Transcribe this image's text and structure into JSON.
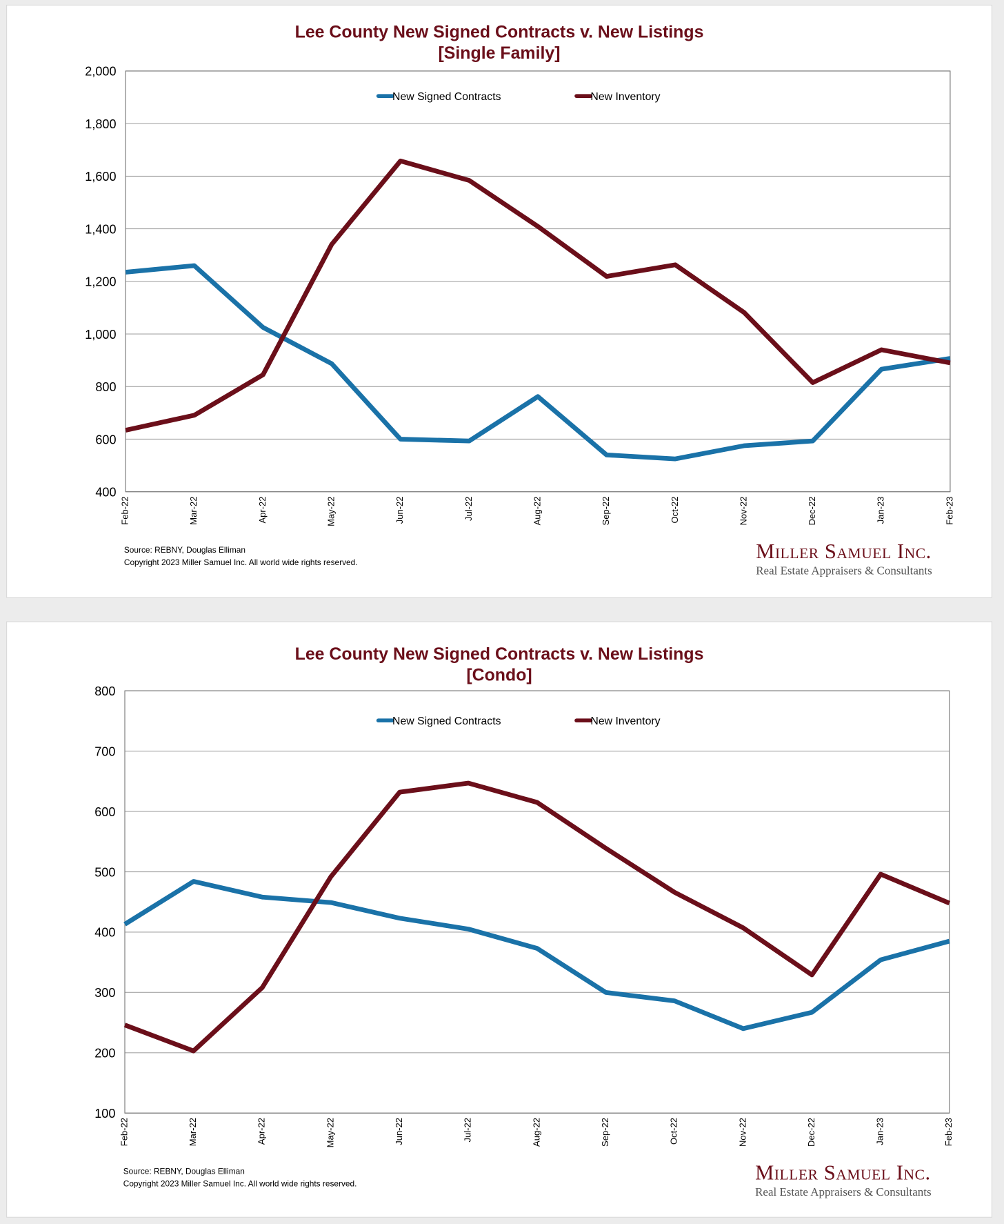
{
  "chart_data": [
    {
      "type": "line",
      "title": "Lee County New Signed Contracts v. New Listings",
      "subtitle": "[Single Family]",
      "categories": [
        "Feb-22",
        "Mar-22",
        "Apr-22",
        "May-22",
        "Jun-22",
        "Jul-22",
        "Aug-22",
        "Sep-22",
        "Oct-22",
        "Nov-22",
        "Dec-22",
        "Jan-23",
        "Feb-23"
      ],
      "ylim": [
        400,
        2000
      ],
      "yticks": [
        400,
        600,
        800,
        1000,
        1200,
        1400,
        1600,
        1800,
        2000
      ],
      "ytick_labels": [
        "400",
        "600",
        "800",
        "1,000",
        "1,200",
        "1,400",
        "1,600",
        "1,800",
        "2,000"
      ],
      "grid": true,
      "legend_position": "top-center",
      "series": [
        {
          "name": "New Signed Contracts",
          "color": "#1a72a8",
          "values": [
            1235,
            1260,
            1025,
            887,
            600,
            593,
            762,
            540,
            525,
            575,
            593,
            866,
            907
          ]
        },
        {
          "name": "New Inventory",
          "color": "#6b0f1a",
          "values": [
            634,
            691,
            845,
            1341,
            1658,
            1584,
            1409,
            1219,
            1263,
            1082,
            815,
            940,
            890
          ]
        }
      ],
      "source": "Source: REBNY, Douglas Elliman",
      "copyright": "Copyright 2023 Miller Samuel Inc.  All world wide rights reserved."
    },
    {
      "type": "line",
      "title": "Lee County New Signed Contracts v. New Listings",
      "subtitle": "[Condo]",
      "categories": [
        "Feb-22",
        "Mar-22",
        "Apr-22",
        "May-22",
        "Jun-22",
        "Jul-22",
        "Aug-22",
        "Sep-22",
        "Oct-22",
        "Nov-22",
        "Dec-22",
        "Jan-23",
        "Feb-23"
      ],
      "ylim": [
        100,
        800
      ],
      "yticks": [
        100,
        200,
        300,
        400,
        500,
        600,
        700,
        800
      ],
      "ytick_labels": [
        "100",
        "200",
        "300",
        "400",
        "500",
        "600",
        "700",
        "800"
      ],
      "grid": true,
      "legend_position": "top-center",
      "series": [
        {
          "name": "New Signed Contracts",
          "color": "#1a72a8",
          "values": [
            413,
            484,
            458,
            449,
            423,
            405,
            373,
            300,
            286,
            240,
            267,
            354,
            385
          ]
        },
        {
          "name": "New Inventory",
          "color": "#6b0f1a",
          "values": [
            246,
            203,
            308,
            492,
            632,
            647,
            615,
            539,
            466,
            407,
            329,
            496,
            448
          ]
        }
      ],
      "source": "Source: REBNY, Douglas Elliman",
      "copyright": "Copyright 2023 Miller Samuel Inc.  All world wide rights reserved."
    }
  ],
  "logo": {
    "line1": "Miller Samuel Inc.",
    "line2": "Real Estate Appraisers & Consultants"
  }
}
